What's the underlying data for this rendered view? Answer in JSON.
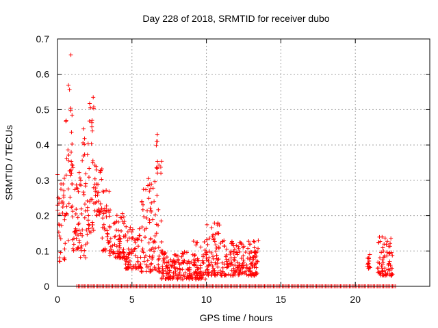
{
  "chart_data": {
    "type": "scatter",
    "title": "Day 228 of 2018, SRMTID for receiver dubo",
    "xlabel": "GPS time / hours",
    "ylabel": "SRMTID / TECUs",
    "xlim": [
      0,
      25
    ],
    "ylim": [
      0,
      0.7
    ],
    "x_ticks": [
      "0",
      "5",
      "10",
      "15",
      "20"
    ],
    "y_ticks": [
      "0",
      "0.1",
      "0.2",
      "0.3",
      "0.4",
      "0.5",
      "0.6",
      "0.7"
    ],
    "x_tick_values": [
      0,
      5,
      10,
      15,
      20
    ],
    "y_tick_values": [
      0,
      0.1,
      0.2,
      0.3,
      0.4,
      0.5,
      0.6,
      0.7
    ],
    "grid": true,
    "marker": "+",
    "marker_color": "#ff0000",
    "series": [
      {
        "name": "SRMTID",
        "approx_point_clusters": [
          {
            "x": [
              0.0,
              0.5
            ],
            "y": [
              0.07,
              0.32
            ]
          },
          {
            "x": [
              0.5,
              1.0
            ],
            "y": [
              0.12,
              0.58
            ]
          },
          {
            "x": [
              1.0,
              1.5
            ],
            "y": [
              0.1,
              0.35
            ]
          },
          {
            "x": [
              1.5,
              2.0
            ],
            "y": [
              0.08,
              0.45
            ]
          },
          {
            "x": [
              2.0,
              2.5
            ],
            "y": [
              0.15,
              0.53
            ]
          },
          {
            "x": [
              2.5,
              3.0
            ],
            "y": [
              0.2,
              0.35
            ]
          },
          {
            "x": [
              3.0,
              3.5
            ],
            "y": [
              0.1,
              0.29
            ]
          },
          {
            "x": [
              3.5,
              4.5
            ],
            "y": [
              0.08,
              0.22
            ]
          },
          {
            "x": [
              4.5,
              5.5
            ],
            "y": [
              0.05,
              0.17
            ]
          },
          {
            "x": [
              5.5,
              6.5
            ],
            "y": [
              0.04,
              0.31
            ]
          },
          {
            "x": [
              6.5,
              7.0
            ],
            "y": [
              0.04,
              0.43
            ]
          },
          {
            "x": [
              7.0,
              9.0
            ],
            "y": [
              0.02,
              0.1
            ]
          },
          {
            "x": [
              9.0,
              10.0
            ],
            "y": [
              0.02,
              0.13
            ]
          },
          {
            "x": [
              10.0,
              11.0
            ],
            "y": [
              0.03,
              0.18
            ]
          },
          {
            "x": [
              11.0,
              13.5
            ],
            "y": [
              0.03,
              0.13
            ]
          },
          {
            "x": [
              20.8,
              21.0
            ],
            "y": [
              0.05,
              0.09
            ]
          },
          {
            "x": [
              21.5,
              22.5
            ],
            "y": [
              0.03,
              0.14
            ]
          }
        ],
        "outliers": [
          {
            "x": 0.9,
            "y": 0.655
          },
          {
            "x": 2.4,
            "y": 0.535
          },
          {
            "x": 6.7,
            "y": 0.43
          },
          {
            "x": 6.7,
            "y": 0.41
          },
          {
            "x": 6.65,
            "y": 0.335
          },
          {
            "x": 6.1,
            "y": 0.305
          }
        ],
        "zero_value_spans": [
          [
            1.3,
            13.6
          ],
          [
            13.6,
            22.8
          ]
        ]
      }
    ]
  }
}
